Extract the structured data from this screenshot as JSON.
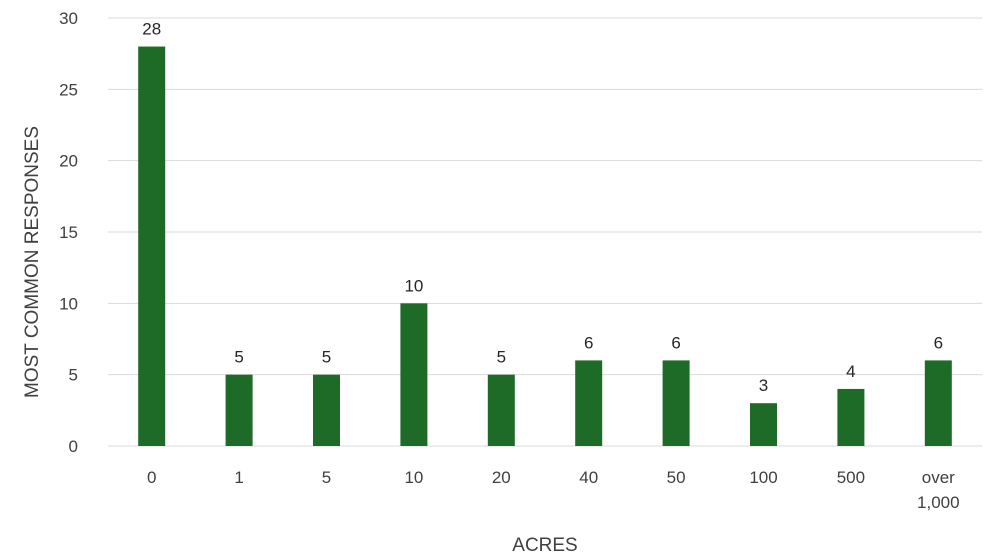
{
  "chart_data": {
    "type": "bar",
    "title": "",
    "xlabel": "ACRES",
    "ylabel": "MOST COMMON RESPONSES",
    "categories": [
      "0",
      "1",
      "5",
      "10",
      "20",
      "40",
      "50",
      "100",
      "500",
      "over 1,000"
    ],
    "values": [
      28,
      5,
      5,
      10,
      5,
      6,
      6,
      3,
      4,
      6
    ],
    "data_labels": [
      "28",
      "5",
      "5",
      "10",
      "5",
      "6",
      "6",
      "3",
      "4",
      "6"
    ],
    "ylim": [
      0,
      30
    ],
    "yticks": [
      "0",
      "5",
      "10",
      "15",
      "20",
      "25",
      "30"
    ],
    "grid": true,
    "legend": "none",
    "bar_color": "#1e6b28"
  }
}
